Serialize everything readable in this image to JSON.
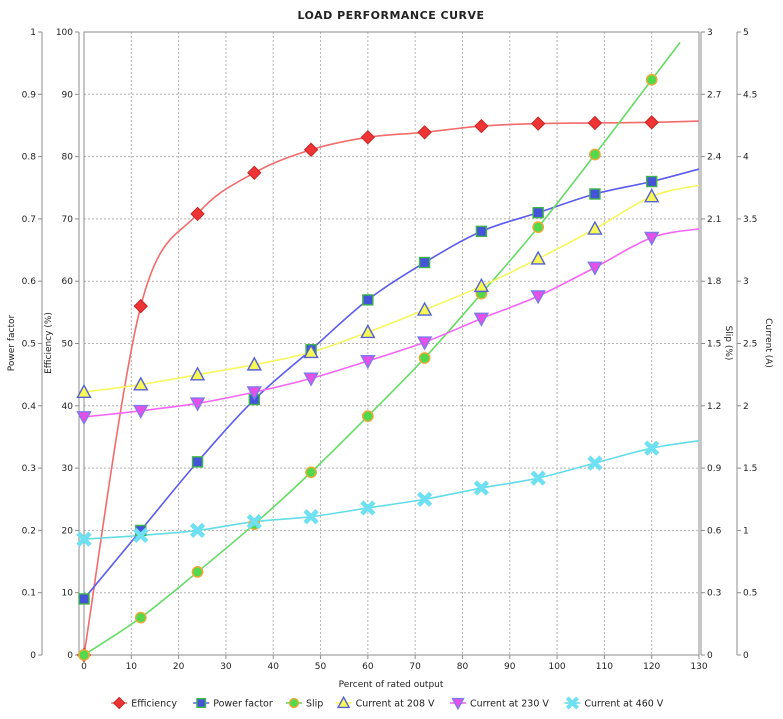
{
  "chart_data": {
    "type": "line",
    "title": "LOAD PERFORMANCE CURVE",
    "xlabel": "Percent of rated output",
    "xlim": [
      0,
      130
    ],
    "x_tick_step": 10,
    "grid": "dotted",
    "legend_position": "bottom",
    "axes": {
      "power_factor": {
        "title": "Power factor",
        "min": 0,
        "max": 1,
        "step": 0.1,
        "side": "left-outer"
      },
      "efficiency": {
        "title": "Efficiency (%)",
        "min": 0,
        "max": 100,
        "step": 10,
        "side": "left-inner"
      },
      "slip": {
        "title": "Slip (%)",
        "min": 0,
        "max": 3,
        "step": 0.3,
        "side": "right-inner"
      },
      "current": {
        "title": "Current (A)",
        "min": 0,
        "max": 5,
        "step": 0.5,
        "side": "right-outer"
      }
    },
    "x": [
      0,
      12,
      24,
      36,
      48,
      60,
      72,
      84,
      96,
      108,
      120
    ],
    "series": [
      {
        "name": "Efficiency",
        "axis": "efficiency",
        "marker": "diamond",
        "marker_fill": "#ee3434",
        "marker_stroke": "#c82525",
        "line_color": "#f26c6c",
        "values": [
          0,
          56,
          70.8,
          77.4,
          81.1,
          83.1,
          83.9,
          84.9,
          85.3,
          85.4,
          85.5
        ],
        "fit_end": {
          "x": 130,
          "v": 85.7
        }
      },
      {
        "name": "Power factor",
        "axis": "power_factor",
        "marker": "square",
        "marker_fill": "#4553d9",
        "marker_stroke": "#3cb54a",
        "line_color": "#5b5bef",
        "values": [
          0.09,
          0.2,
          0.31,
          0.41,
          0.49,
          0.57,
          0.63,
          0.68,
          0.71,
          0.74,
          0.76
        ],
        "fit_end": {
          "x": 130,
          "v": 0.78
        }
      },
      {
        "name": "Slip",
        "axis": "slip",
        "marker": "circle",
        "marker_fill": "#52d94b",
        "marker_stroke": "#efa93a",
        "line_color": "#63dd63",
        "values": [
          0,
          0.18,
          0.4,
          0.63,
          0.88,
          1.15,
          1.43,
          1.74,
          2.06,
          2.41,
          2.77
        ],
        "fit_end": {
          "x": 126,
          "v": 2.95
        }
      },
      {
        "name": "Current at 208 V",
        "axis": "current",
        "marker": "triangle-up",
        "marker_fill": "#f9f954",
        "marker_stroke": "#5560d8",
        "line_color": "#f6f65e",
        "values": [
          2.11,
          2.17,
          2.25,
          2.33,
          2.43,
          2.59,
          2.77,
          2.96,
          3.18,
          3.42,
          3.68
        ],
        "fit_end": {
          "x": 130,
          "v": 3.77
        }
      },
      {
        "name": "Current at 230 V",
        "axis": "current",
        "marker": "triangle-down",
        "marker_fill": "#e84fe8",
        "marker_stroke": "#7b7bea",
        "line_color": "#f566f5",
        "values": [
          1.91,
          1.96,
          2.02,
          2.11,
          2.22,
          2.36,
          2.51,
          2.7,
          2.88,
          3.11,
          3.35
        ],
        "fit_end": {
          "x": 130,
          "v": 3.42
        }
      },
      {
        "name": "Current at 460 V",
        "axis": "current",
        "marker": "x",
        "marker_fill": "#6ee0f2",
        "marker_stroke": "#6ee0f2",
        "line_color": "#64dce8",
        "values": [
          0.93,
          0.96,
          1.0,
          1.07,
          1.11,
          1.18,
          1.25,
          1.34,
          1.42,
          1.54,
          1.66
        ],
        "fit_end": {
          "x": 130,
          "v": 1.72
        }
      }
    ]
  }
}
